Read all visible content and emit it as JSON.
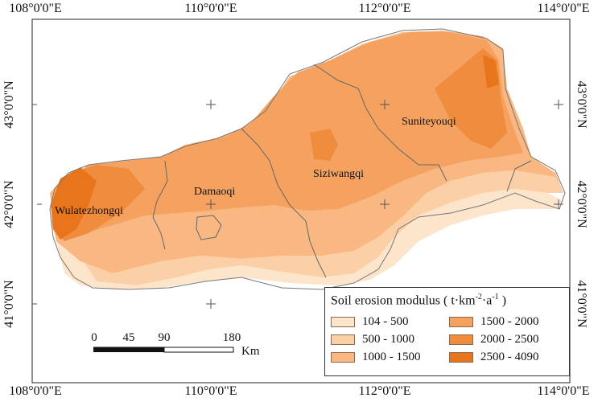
{
  "graticule": {
    "top_labels": [
      "108°0'0\"E",
      "110°0'0\"E",
      "112°0'0\"E",
      "114°0'0\"E"
    ],
    "bottom_labels": [
      "108°0'0\"E",
      "110°0'0\"E",
      "112°0'0\"E",
      "114°0'0\"E"
    ],
    "left_labels": [
      "43°0'0\"N",
      "42°0'0\"N",
      "41°0'0\"N"
    ],
    "right_labels": [
      "43°0'0\"N",
      "42°0'0\"N",
      "41°0'0\"N"
    ]
  },
  "regions": {
    "wulatezhongqi": "Wulatezhongqi",
    "damaoqi": "Damaoqi",
    "siziwangqi": "Siziwangqi",
    "suniteyouqi": "Suniteyouqi"
  },
  "legend": {
    "title_main": "Soil erosion modulus ( t·km",
    "title_sup1": "-2",
    "title_mid": "·a",
    "title_sup2": "-1",
    "title_end": " )",
    "classes": [
      {
        "label": "104 - 500",
        "color": "#fde5cc"
      },
      {
        "label": "500 - 1000",
        "color": "#fcd0a6"
      },
      {
        "label": "1000 - 1500",
        "color": "#f9b882"
      },
      {
        "label": "1500 - 2000",
        "color": "#f5a261"
      },
      {
        "label": "2000 - 2500",
        "color": "#f08c3e"
      },
      {
        "label": "2500 - 4090",
        "color": "#e8751c"
      }
    ]
  },
  "scalebar": {
    "ticks": [
      "0",
      "45",
      "90",
      "180"
    ],
    "unit": "Km"
  }
}
